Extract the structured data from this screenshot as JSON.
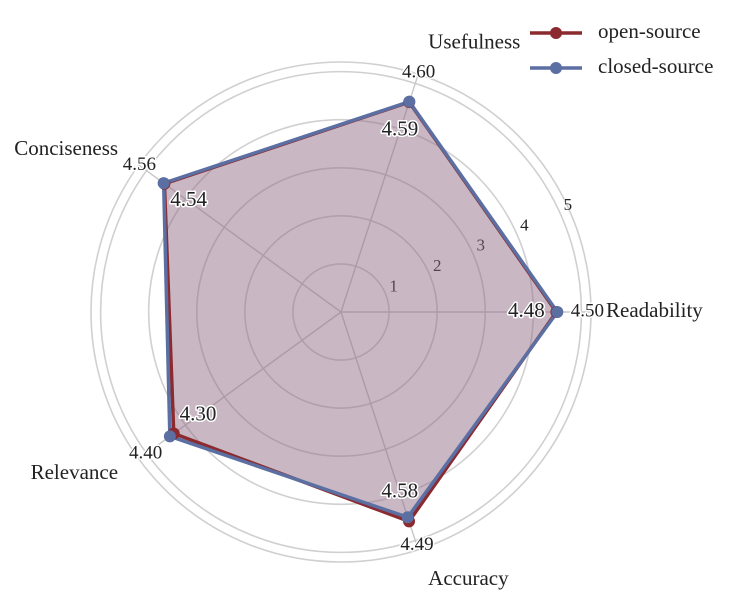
{
  "chart_data": {
    "type": "radar",
    "categories": [
      "Readability",
      "Usefulness",
      "Conciseness",
      "Relevance",
      "Accuracy"
    ],
    "series": [
      {
        "name": "open-source",
        "color": "#8b2a2f",
        "values": [
          4.48,
          4.59,
          4.54,
          4.3,
          4.58
        ],
        "value_labels": [
          "4.48",
          "4.59",
          "4.54",
          "4.30",
          "4.58"
        ]
      },
      {
        "name": "closed-source",
        "color": "#5b6fa3",
        "values": [
          4.5,
          4.6,
          4.56,
          4.4,
          4.49
        ],
        "value_labels": [
          "4.50",
          "4.60",
          "4.56",
          "4.40",
          "4.49"
        ]
      }
    ],
    "fill_color": "#8f6a84",
    "rlim": [
      0,
      5.2
    ],
    "rticks": [
      1,
      2,
      3,
      4,
      5
    ],
    "grid": true,
    "legend": "upper right"
  }
}
